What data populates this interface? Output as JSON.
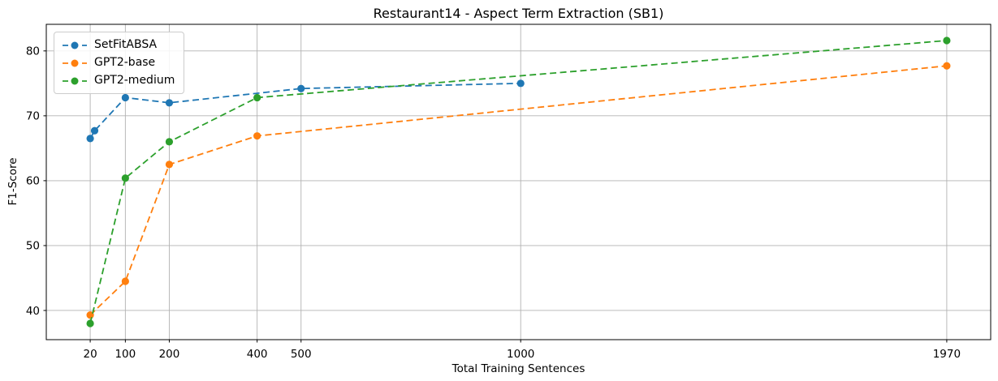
{
  "chart_data": {
    "type": "line",
    "title": "Restaurant14 - Aspect Term Extraction (SB1)",
    "xlabel": "Total Training Sentences",
    "ylabel": "F1-Score",
    "x_ticks": [
      20,
      100,
      200,
      400,
      500,
      1000,
      1970
    ],
    "y_ticks": [
      40,
      50,
      60,
      70,
      80
    ],
    "xlim": [
      -80,
      2070
    ],
    "ylim": [
      35.5,
      84.1
    ],
    "grid": true,
    "line_style": "dashed",
    "marker": "circle",
    "legend_position": "upper-left",
    "series": [
      {
        "name": "SetFitABSA",
        "color": "#1f77b4",
        "x": [
          20,
          30,
          100,
          200,
          500,
          1000
        ],
        "y": [
          66.5,
          67.7,
          72.8,
          72.0,
          74.2,
          75.0
        ]
      },
      {
        "name": "GPT2-base",
        "color": "#ff7f0e",
        "x": [
          20,
          100,
          200,
          400,
          1970
        ],
        "y": [
          39.3,
          44.5,
          62.5,
          66.9,
          77.7
        ]
      },
      {
        "name": "GPT2-medium",
        "color": "#2ca02c",
        "x": [
          20,
          100,
          200,
          400,
          1970
        ],
        "y": [
          38.0,
          60.4,
          66.0,
          72.8,
          81.6
        ]
      }
    ]
  },
  "colors": {
    "background": "#ffffff",
    "grid": "#b2b2b2",
    "spine": "#000000",
    "text": "#000000",
    "legend_border": "#cccccc"
  }
}
